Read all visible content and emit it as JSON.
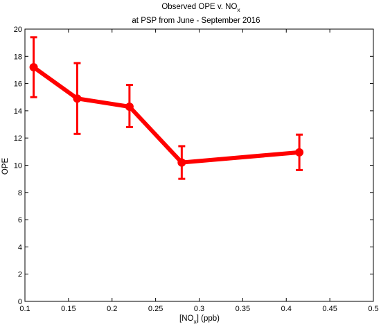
{
  "chart_data": {
    "type": "line",
    "title_line1_main": "Observed OPE v. NO",
    "title_line1_sub": "x",
    "title_line2": "at PSP from June - September 2016",
    "xlabel_prefix": "[NO",
    "xlabel_sub": "x",
    "xlabel_suffix": "] (ppb)",
    "ylabel": "OPE",
    "xlim": [
      0.1,
      0.5
    ],
    "ylim": [
      0,
      20
    ],
    "x_ticks": [
      "0.1",
      "0.15",
      "0.2",
      "0.25",
      "0.3",
      "0.35",
      "0.4",
      "0.45",
      "0.5"
    ],
    "y_ticks": [
      "0",
      "2",
      "4",
      "6",
      "8",
      "10",
      "12",
      "14",
      "16",
      "18",
      "20"
    ],
    "color": "#ff0000",
    "grid": false,
    "series": [
      {
        "x": [
          0.11,
          0.16,
          0.22,
          0.28,
          0.415
        ],
        "y": [
          17.2,
          14.9,
          14.3,
          10.2,
          10.95
        ],
        "err_low": [
          15.0,
          12.3,
          12.8,
          9.0,
          9.65
        ],
        "err_high": [
          19.4,
          17.5,
          15.9,
          11.4,
          12.25
        ]
      }
    ]
  }
}
